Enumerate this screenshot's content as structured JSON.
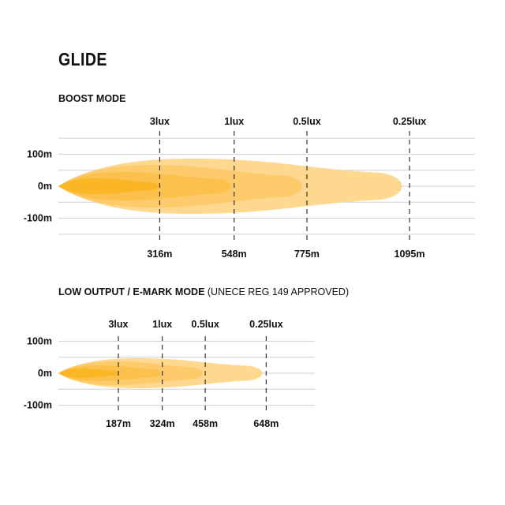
{
  "title": "GLIDE",
  "colors": {
    "outer": "#fed88e",
    "mid2": "#fdcb6c",
    "mid1": "#fcc04d",
    "inner": "#fbb625",
    "grid": "#cfcfcf",
    "dash": "#333333"
  },
  "charts": [
    {
      "heading": "BOOST MODE",
      "heading_note": "",
      "y_labels": [
        "100m",
        "0m",
        "-100m"
      ],
      "markers": [
        {
          "lux": "3lux",
          "distance_label": "316m",
          "distance": 316
        },
        {
          "lux": "1lux",
          "distance_label": "548m",
          "distance": 548
        },
        {
          "lux": "0.5lux",
          "distance_label": "775m",
          "distance": 775
        },
        {
          "lux": "0.25lux",
          "distance_label": "1095m",
          "distance": 1095
        }
      ]
    },
    {
      "heading": "LOW OUTPUT / E-MARK MODE",
      "heading_note": "(UNECE REG 149 APPROVED)",
      "y_labels": [
        "100m",
        "0m",
        "-100m"
      ],
      "markers": [
        {
          "lux": "3lux",
          "distance_label": "187m",
          "distance": 187
        },
        {
          "lux": "1lux",
          "distance_label": "324m",
          "distance": 324
        },
        {
          "lux": "0.5lux",
          "distance_label": "458m",
          "distance": 458
        },
        {
          "lux": "0.25lux",
          "distance_label": "648m",
          "distance": 648
        }
      ]
    }
  ]
}
